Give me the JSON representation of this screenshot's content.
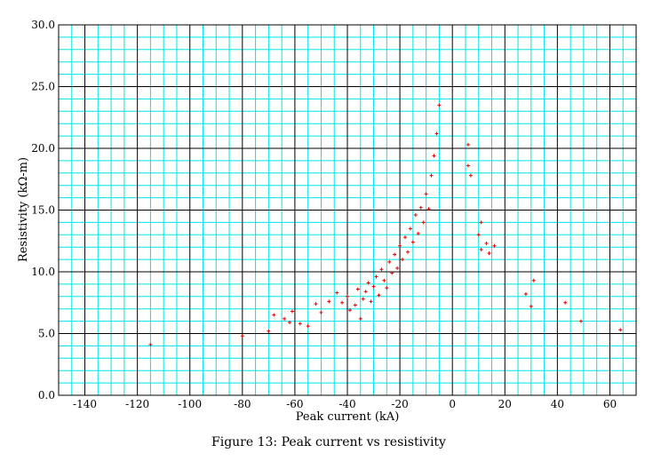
{
  "caption": "Figure 13: Peak current vs resistivity",
  "colors": {
    "grid_minor": "#00e5e5",
    "grid_major": "#000000",
    "points": "#e60000"
  },
  "chart_data": {
    "type": "scatter",
    "title": "",
    "xlabel": "Peak current (kA)",
    "ylabel": "Resistivity (kΩ-m)",
    "xlim": [
      -150,
      70
    ],
    "ylim": [
      0,
      30
    ],
    "x_ticks": [
      -140,
      -120,
      -100,
      -80,
      -60,
      -40,
      -20,
      0,
      20,
      40,
      60
    ],
    "y_ticks": [
      0,
      5,
      10,
      15,
      20,
      25,
      30
    ],
    "x_tick_labels": [
      "-140",
      "-120",
      "-100",
      "-80",
      "-60",
      "-40",
      "-20",
      "0",
      "20",
      "40",
      "60"
    ],
    "y_tick_labels": [
      "0.0",
      "5.0",
      "10.0",
      "15.0",
      "20.0",
      "25.0",
      "30.0"
    ],
    "grid": true,
    "legend": "none",
    "series": [
      {
        "marker": "+",
        "points": [
          [
            -115,
            4.1
          ],
          [
            -80,
            4.8
          ],
          [
            -70,
            5.2
          ],
          [
            -68,
            6.5
          ],
          [
            -64,
            6.2
          ],
          [
            -62,
            5.9
          ],
          [
            -61,
            6.8
          ],
          [
            -58,
            5.8
          ],
          [
            -55,
            5.6
          ],
          [
            -52,
            7.4
          ],
          [
            -50,
            6.7
          ],
          [
            -47,
            7.6
          ],
          [
            -44,
            8.3
          ],
          [
            -42,
            7.5
          ],
          [
            -40,
            8.0
          ],
          [
            -39,
            6.9
          ],
          [
            -37,
            7.3
          ],
          [
            -36,
            8.6
          ],
          [
            -35,
            6.2
          ],
          [
            -34,
            7.8
          ],
          [
            -33,
            8.4
          ],
          [
            -32,
            9.1
          ],
          [
            -31,
            7.6
          ],
          [
            -30,
            8.8
          ],
          [
            -29,
            9.6
          ],
          [
            -28,
            8.1
          ],
          [
            -27,
            10.2
          ],
          [
            -26,
            9.3
          ],
          [
            -25,
            8.7
          ],
          [
            -24,
            10.8
          ],
          [
            -23,
            9.9
          ],
          [
            -22,
            11.4
          ],
          [
            -21,
            10.3
          ],
          [
            -20,
            12.1
          ],
          [
            -19,
            11.0
          ],
          [
            -18,
            12.8
          ],
          [
            -17,
            11.6
          ],
          [
            -16,
            13.5
          ],
          [
            -15,
            12.4
          ],
          [
            -14,
            14.6
          ],
          [
            -13,
            13.1
          ],
          [
            -12,
            15.2
          ],
          [
            -11,
            14.0
          ],
          [
            -10,
            16.3
          ],
          [
            -9,
            15.1
          ],
          [
            -8,
            17.8
          ],
          [
            -7,
            19.4
          ],
          [
            -6,
            21.2
          ],
          [
            -5,
            23.5
          ],
          [
            6,
            20.3
          ],
          [
            6,
            18.6
          ],
          [
            7,
            17.8
          ],
          [
            10,
            13.0
          ],
          [
            11,
            14.0
          ],
          [
            11,
            11.8
          ],
          [
            13,
            12.3
          ],
          [
            14,
            11.5
          ],
          [
            16,
            12.1
          ],
          [
            28,
            8.2
          ],
          [
            30,
            7.2
          ],
          [
            31,
            9.3
          ],
          [
            43,
            7.5
          ],
          [
            49,
            6.0
          ],
          [
            64,
            5.3
          ]
        ]
      }
    ]
  }
}
